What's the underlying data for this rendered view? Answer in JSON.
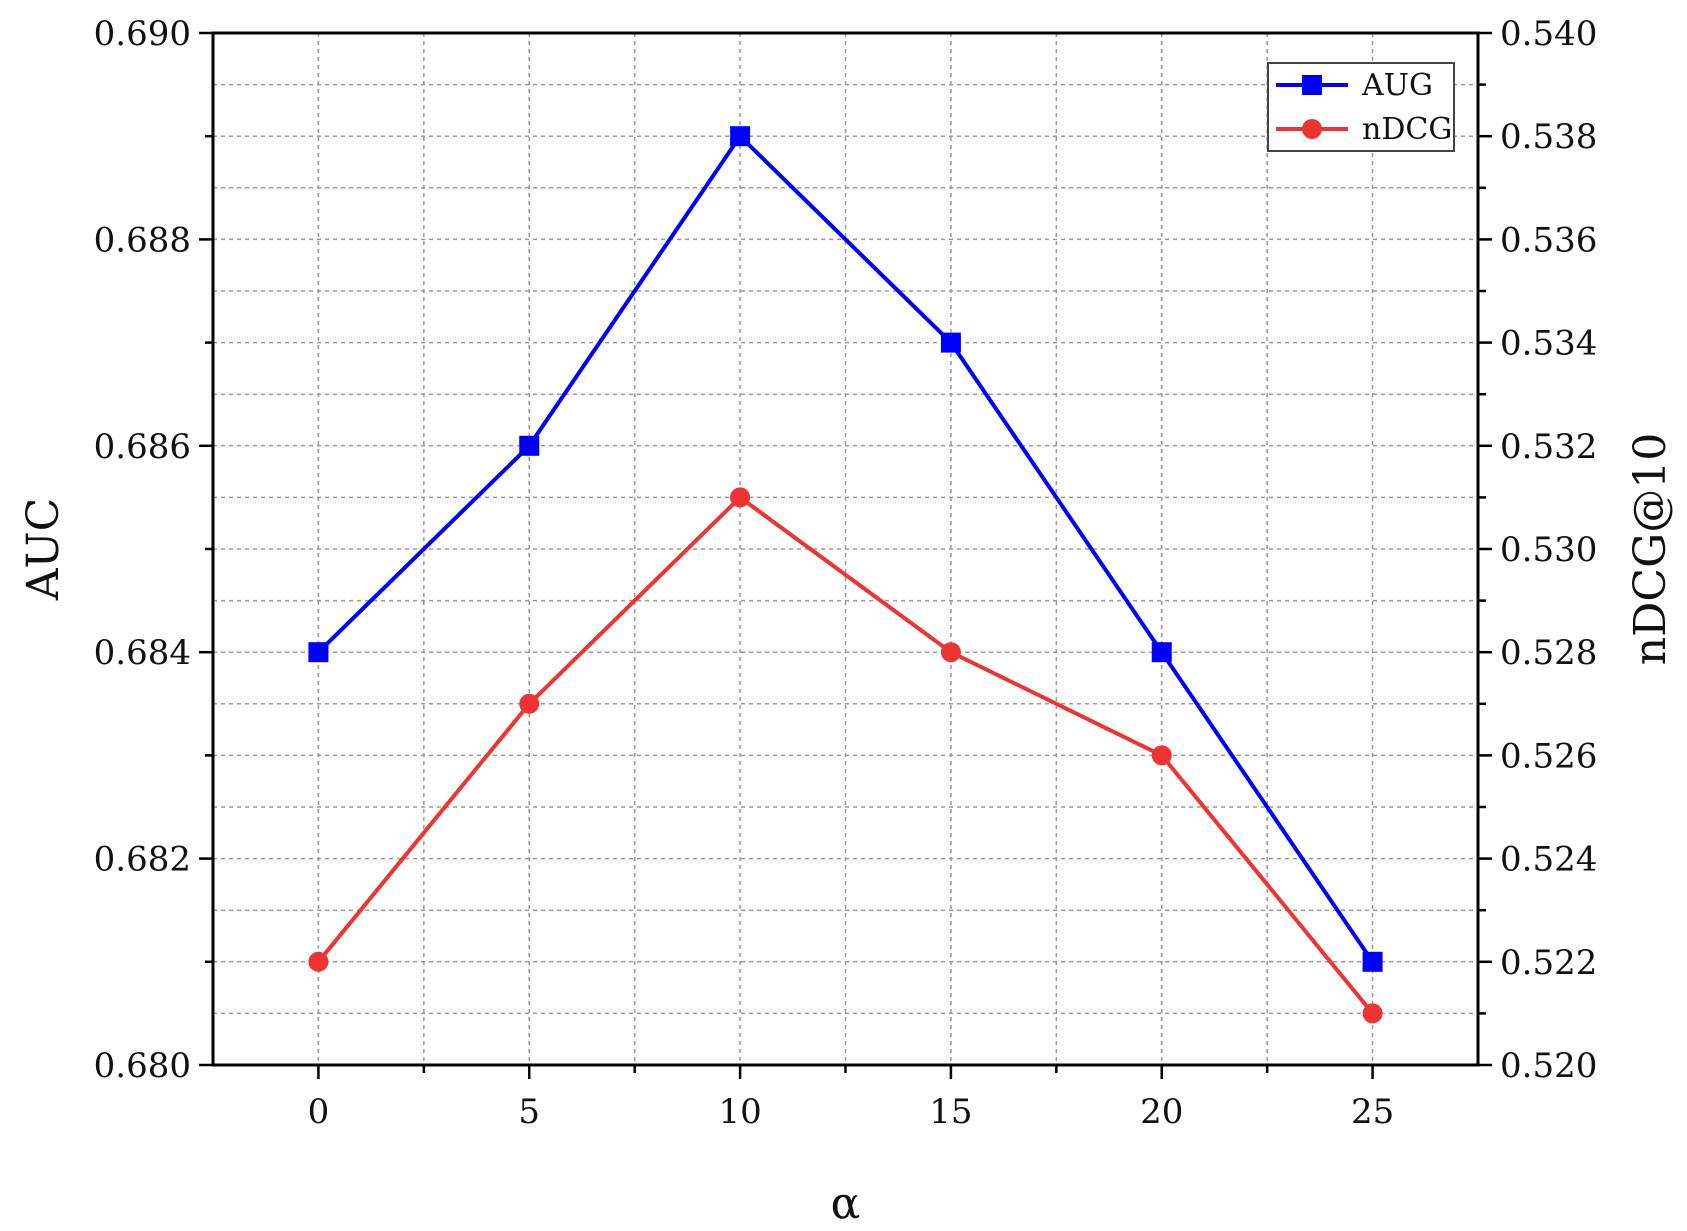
{
  "chart_data": {
    "type": "line",
    "x": [
      0,
      5,
      10,
      15,
      20,
      25
    ],
    "xlabel": "α",
    "xlim": [
      -2.5,
      27.5
    ],
    "xticks": [
      0,
      5,
      10,
      15,
      20,
      25
    ],
    "y_left": {
      "label": "AUC",
      "lim": [
        0.68,
        0.69
      ],
      "ticks": [
        "0.680",
        "0.682",
        "0.684",
        "0.686",
        "0.688",
        "0.690"
      ]
    },
    "y_right": {
      "label": "nDCG@10",
      "lim": [
        0.52,
        0.54
      ],
      "ticks": [
        "0.520",
        "0.522",
        "0.524",
        "0.526",
        "0.528",
        "0.530",
        "0.532",
        "0.534",
        "0.536",
        "0.538",
        "0.540"
      ]
    },
    "grid": true,
    "legend_position": "top-right",
    "series": [
      {
        "name": "AUG",
        "axis": "left",
        "color": "#0000ff",
        "marker": "square",
        "values": [
          0.684,
          0.686,
          0.689,
          0.687,
          0.684,
          0.681
        ]
      },
      {
        "name": "nDCG",
        "axis": "right",
        "color": "#ee3333",
        "marker": "circle",
        "values": [
          0.522,
          0.527,
          0.531,
          0.528,
          0.526,
          0.521
        ]
      }
    ]
  }
}
